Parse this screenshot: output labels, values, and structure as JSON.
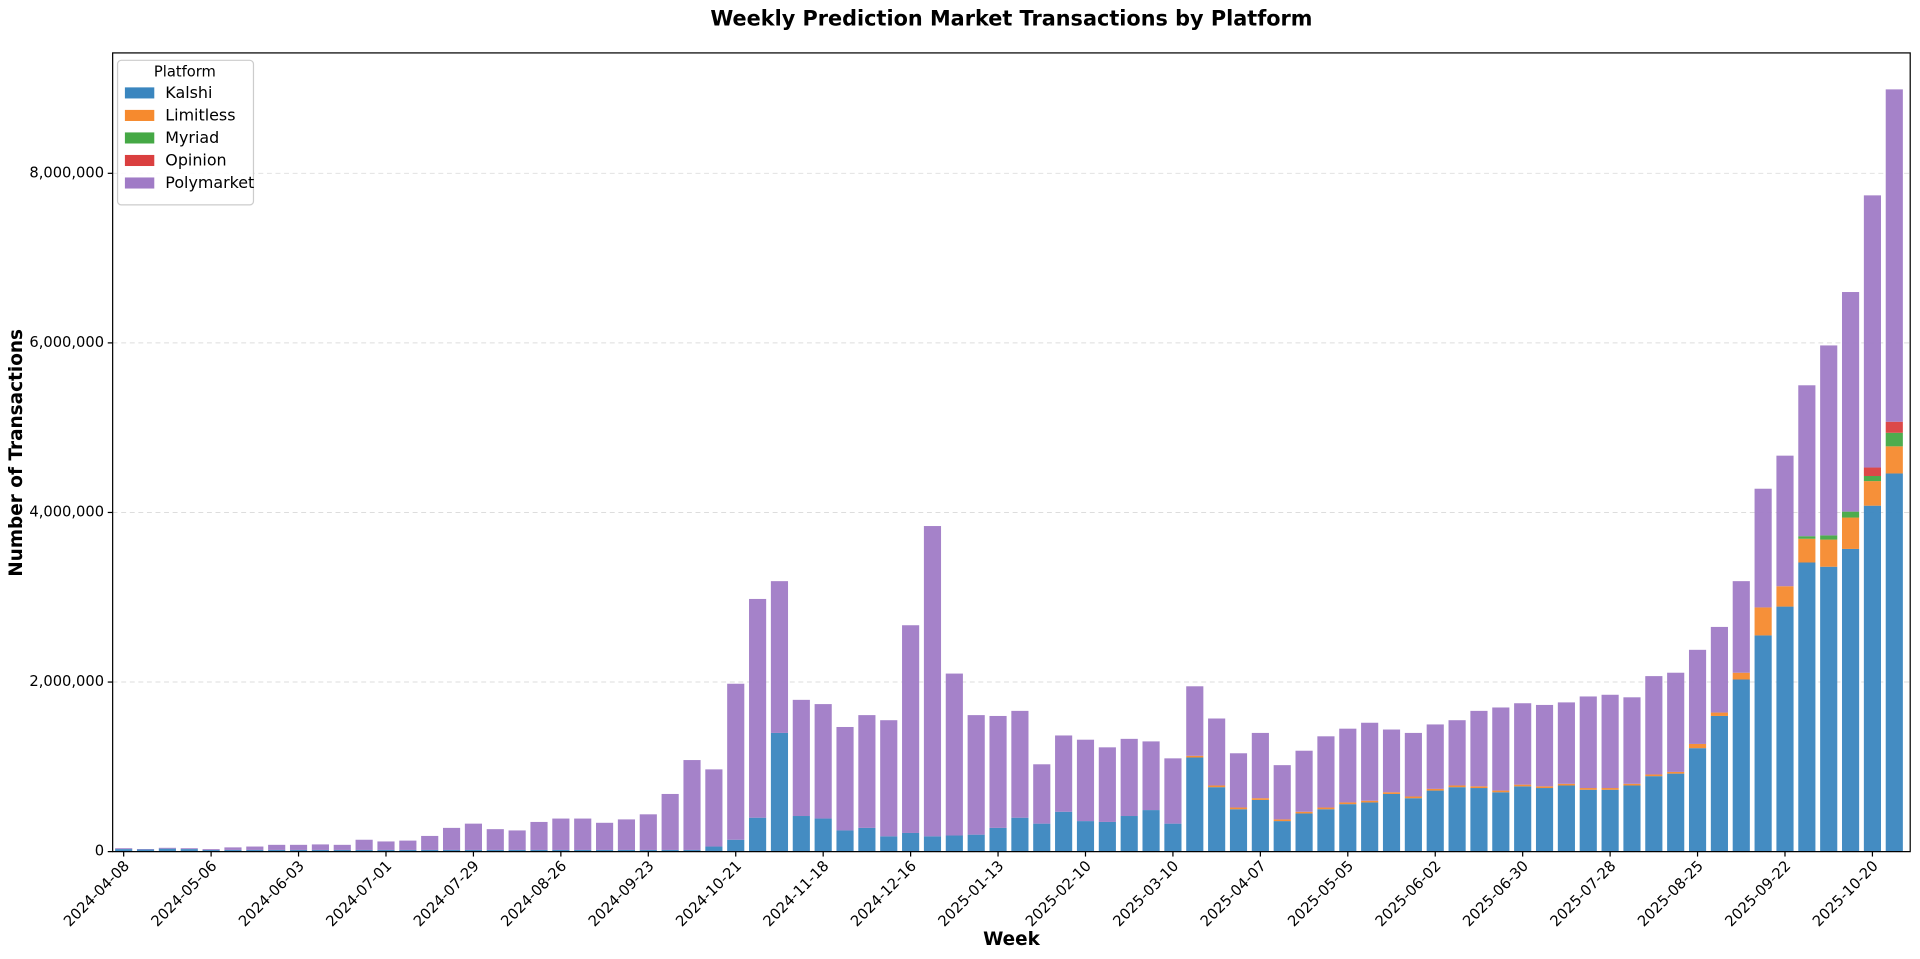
{
  "chart_data": {
    "type": "stacked_bar",
    "title": "Weekly Prediction Market Transactions by Platform",
    "x_label": "Week",
    "y_label": "Number of Transactions",
    "legend_title": "Platform",
    "legend_position": "upper left",
    "grid": true,
    "categories": [
      "2024-04-08",
      null,
      null,
      null,
      "2024-05-06",
      null,
      null,
      null,
      "2024-06-03",
      null,
      null,
      null,
      "2024-07-01",
      null,
      null,
      null,
      "2024-07-29",
      null,
      null,
      null,
      "2024-08-26",
      null,
      null,
      null,
      "2024-09-23",
      null,
      null,
      null,
      "2024-10-21",
      null,
      null,
      null,
      "2024-11-18",
      null,
      null,
      null,
      "2024-12-16",
      null,
      null,
      null,
      "2025-01-13",
      null,
      null,
      null,
      "2025-02-10",
      null,
      null,
      null,
      "2025-03-10",
      null,
      null,
      null,
      "2025-04-07",
      null,
      null,
      null,
      "2025-05-05",
      null,
      null,
      null,
      "2025-06-02",
      null,
      null,
      null,
      "2025-06-30",
      null,
      null,
      null,
      "2025-07-28",
      null,
      null,
      null,
      "2025-08-25",
      null,
      null,
      null,
      "2025-09-22",
      null,
      null,
      null,
      "2025-10-20",
      null
    ],
    "ylim": [
      0,
      9420000
    ],
    "yticks": [
      0,
      {
        "value": 2000000,
        "label": "2,000,000"
      },
      {
        "value": 4000000,
        "label": "4,000,000"
      },
      {
        "value": 6000000,
        "label": "6,000,000"
      },
      {
        "value": 8000000,
        "label": "8,000,000"
      }
    ],
    "series": [
      {
        "name": "Kalshi",
        "color": "#3a86bf",
        "values": [
          30000,
          25000,
          35000,
          30000,
          20000,
          20000,
          20000,
          20000,
          20000,
          20000,
          20000,
          20000,
          20000,
          20000,
          20000,
          20000,
          20000,
          20000,
          20000,
          20000,
          20000,
          20000,
          20000,
          20000,
          20000,
          20000,
          20000,
          60000,
          140000,
          400000,
          1400000,
          420000,
          390000,
          250000,
          280000,
          180000,
          220000,
          180000,
          190000,
          200000,
          280000,
          400000,
          330000,
          470000,
          360000,
          350000,
          420000,
          490000,
          330000,
          1110000,
          760000,
          500000,
          610000,
          360000,
          450000,
          500000,
          560000,
          580000,
          680000,
          630000,
          720000,
          760000,
          750000,
          700000,
          770000,
          750000,
          780000,
          730000,
          730000,
          780000,
          890000,
          920000,
          1220000,
          1600000,
          2030000,
          2550000,
          2890000,
          3410000,
          3360000,
          3570000,
          4080000,
          4460000
        ]
      },
      {
        "name": "Limitless",
        "color": "#f68a2e",
        "values": [
          0,
          0,
          0,
          0,
          0,
          0,
          0,
          0,
          0,
          0,
          0,
          0,
          0,
          0,
          0,
          0,
          0,
          0,
          0,
          0,
          0,
          0,
          0,
          0,
          0,
          0,
          0,
          0,
          0,
          0,
          0,
          0,
          0,
          0,
          0,
          0,
          0,
          0,
          0,
          0,
          0,
          0,
          0,
          0,
          0,
          0,
          0,
          0,
          0,
          20000,
          20000,
          20000,
          20000,
          20000,
          20000,
          20000,
          20000,
          20000,
          20000,
          20000,
          20000,
          20000,
          20000,
          20000,
          20000,
          20000,
          20000,
          20000,
          20000,
          20000,
          20000,
          20000,
          50000,
          40000,
          80000,
          330000,
          240000,
          280000,
          320000,
          370000,
          290000,
          320000
        ]
      },
      {
        "name": "Myriad",
        "color": "#45a845",
        "values": [
          0,
          0,
          0,
          0,
          0,
          0,
          0,
          0,
          0,
          0,
          0,
          0,
          0,
          0,
          0,
          0,
          0,
          0,
          0,
          0,
          0,
          0,
          0,
          0,
          0,
          0,
          0,
          0,
          0,
          0,
          0,
          0,
          0,
          0,
          0,
          0,
          0,
          0,
          0,
          0,
          0,
          0,
          0,
          0,
          0,
          0,
          0,
          0,
          0,
          0,
          0,
          0,
          0,
          0,
          0,
          0,
          0,
          0,
          0,
          0,
          0,
          0,
          0,
          0,
          0,
          0,
          0,
          0,
          0,
          0,
          0,
          0,
          0,
          0,
          0,
          0,
          0,
          30000,
          50000,
          70000,
          60000,
          160000
        ]
      },
      {
        "name": "Opinion",
        "color": "#da3f3f",
        "values": [
          0,
          0,
          0,
          0,
          0,
          0,
          0,
          0,
          0,
          0,
          0,
          0,
          0,
          0,
          0,
          0,
          0,
          0,
          0,
          0,
          0,
          0,
          0,
          0,
          0,
          0,
          0,
          0,
          0,
          0,
          0,
          0,
          0,
          0,
          0,
          0,
          0,
          0,
          0,
          0,
          0,
          0,
          0,
          0,
          0,
          0,
          0,
          0,
          0,
          0,
          0,
          0,
          0,
          0,
          0,
          0,
          0,
          0,
          0,
          0,
          0,
          0,
          0,
          0,
          0,
          0,
          0,
          0,
          0,
          0,
          0,
          0,
          0,
          0,
          0,
          0,
          0,
          0,
          0,
          0,
          100000,
          130000
        ]
      },
      {
        "name": "Polymarket",
        "color": "#a07bc6",
        "values": [
          10000,
          5000,
          10000,
          10000,
          10000,
          30000,
          40000,
          60000,
          60000,
          65000,
          60000,
          120000,
          100000,
          110000,
          165000,
          260000,
          310000,
          245000,
          230000,
          330000,
          370000,
          370000,
          320000,
          360000,
          420000,
          660000,
          1060000,
          910000,
          1840000,
          2580000,
          1790000,
          1370000,
          1350000,
          1220000,
          1330000,
          1370000,
          2450000,
          3660000,
          1910000,
          1410000,
          1320000,
          1260000,
          700000,
          900000,
          960000,
          880000,
          910000,
          810000,
          770000,
          820000,
          790000,
          640000,
          770000,
          640000,
          720000,
          840000,
          870000,
          920000,
          740000,
          750000,
          760000,
          770000,
          890000,
          980000,
          960000,
          960000,
          960000,
          1080000,
          1100000,
          1020000,
          1160000,
          1170000,
          1110000,
          1010000,
          1080000,
          1400000,
          1540000,
          1780000,
          2240000,
          2590000,
          3210000,
          3920000
        ]
      }
    ]
  }
}
